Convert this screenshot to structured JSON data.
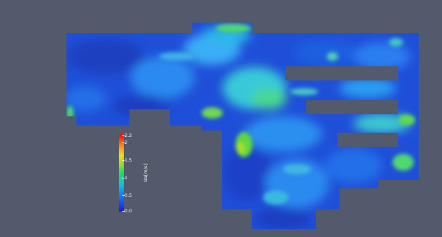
{
  "viewer": {
    "background_color": "#525a6b",
    "colormap": "jet-like (blue-cyan-green-yellow-red)"
  },
  "colorbar": {
    "title": "Ua[m/s]",
    "range": [
      0.0,
      2.2
    ],
    "ticks": [
      "2.2",
      "2",
      "1.5",
      "1",
      "0.5",
      "0.0"
    ]
  }
}
